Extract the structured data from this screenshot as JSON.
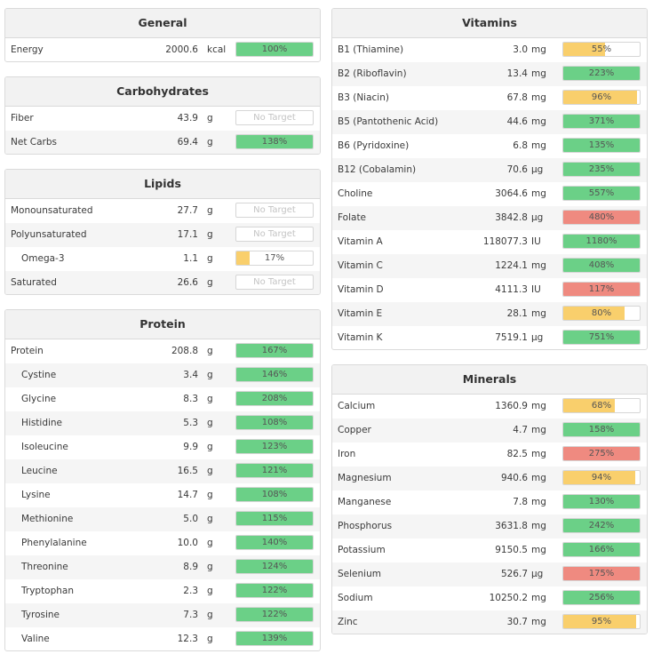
{
  "colors": {
    "over": "#6bd087",
    "under": "#f9cf6c",
    "excess": "#ef8a80"
  },
  "general": {
    "title": "General",
    "rows": [
      {
        "name": "Energy",
        "amount": "2000.6",
        "unit": "kcal",
        "pct": 100,
        "label": "100%",
        "status": "over"
      }
    ]
  },
  "carbohydrates": {
    "title": "Carbohydrates",
    "rows": [
      {
        "name": "Fiber",
        "amount": "43.9",
        "unit": "g",
        "pct": null,
        "label": "No Target",
        "status": "none"
      },
      {
        "name": "Net Carbs",
        "amount": "69.4",
        "unit": "g",
        "pct": 138,
        "label": "138%",
        "status": "over"
      }
    ]
  },
  "lipids": {
    "title": "Lipids",
    "rows": [
      {
        "name": "Monounsaturated",
        "amount": "27.7",
        "unit": "g",
        "pct": null,
        "label": "No Target",
        "status": "none"
      },
      {
        "name": "Polyunsaturated",
        "amount": "17.1",
        "unit": "g",
        "pct": null,
        "label": "No Target",
        "status": "none"
      },
      {
        "name": "Omega-3",
        "amount": "1.1",
        "unit": "g",
        "pct": 17,
        "label": "17%",
        "status": "under",
        "indent": true
      },
      {
        "name": "Saturated",
        "amount": "26.6",
        "unit": "g",
        "pct": null,
        "label": "No Target",
        "status": "none"
      }
    ]
  },
  "protein": {
    "title": "Protein",
    "rows": [
      {
        "name": "Protein",
        "amount": "208.8",
        "unit": "g",
        "pct": 167,
        "label": "167%",
        "status": "over"
      },
      {
        "name": "Cystine",
        "amount": "3.4",
        "unit": "g",
        "pct": 146,
        "label": "146%",
        "status": "over",
        "indent": true
      },
      {
        "name": "Glycine",
        "amount": "8.3",
        "unit": "g",
        "pct": 208,
        "label": "208%",
        "status": "over",
        "indent": true
      },
      {
        "name": "Histidine",
        "amount": "5.3",
        "unit": "g",
        "pct": 108,
        "label": "108%",
        "status": "over",
        "indent": true
      },
      {
        "name": "Isoleucine",
        "amount": "9.9",
        "unit": "g",
        "pct": 123,
        "label": "123%",
        "status": "over",
        "indent": true
      },
      {
        "name": "Leucine",
        "amount": "16.5",
        "unit": "g",
        "pct": 121,
        "label": "121%",
        "status": "over",
        "indent": true
      },
      {
        "name": "Lysine",
        "amount": "14.7",
        "unit": "g",
        "pct": 108,
        "label": "108%",
        "status": "over",
        "indent": true
      },
      {
        "name": "Methionine",
        "amount": "5.0",
        "unit": "g",
        "pct": 115,
        "label": "115%",
        "status": "over",
        "indent": true
      },
      {
        "name": "Phenylalanine",
        "amount": "10.0",
        "unit": "g",
        "pct": 140,
        "label": "140%",
        "status": "over",
        "indent": true
      },
      {
        "name": "Threonine",
        "amount": "8.9",
        "unit": "g",
        "pct": 124,
        "label": "124%",
        "status": "over",
        "indent": true
      },
      {
        "name": "Tryptophan",
        "amount": "2.3",
        "unit": "g",
        "pct": 122,
        "label": "122%",
        "status": "over",
        "indent": true
      },
      {
        "name": "Tyrosine",
        "amount": "7.3",
        "unit": "g",
        "pct": 122,
        "label": "122%",
        "status": "over",
        "indent": true
      },
      {
        "name": "Valine",
        "amount": "12.3",
        "unit": "g",
        "pct": 139,
        "label": "139%",
        "status": "over",
        "indent": true
      }
    ]
  },
  "vitamins": {
    "title": "Vitamins",
    "rows": [
      {
        "name": "B1 (Thiamine)",
        "amount": "3.0",
        "unit": "mg",
        "pct": 55,
        "label": "55%",
        "status": "under"
      },
      {
        "name": "B2 (Riboflavin)",
        "amount": "13.4",
        "unit": "mg",
        "pct": 223,
        "label": "223%",
        "status": "over"
      },
      {
        "name": "B3 (Niacin)",
        "amount": "67.8",
        "unit": "mg",
        "pct": 96,
        "label": "96%",
        "status": "under"
      },
      {
        "name": "B5 (Pantothenic Acid)",
        "amount": "44.6",
        "unit": "mg",
        "pct": 371,
        "label": "371%",
        "status": "over"
      },
      {
        "name": "B6 (Pyridoxine)",
        "amount": "6.8",
        "unit": "mg",
        "pct": 135,
        "label": "135%",
        "status": "over"
      },
      {
        "name": "B12 (Cobalamin)",
        "amount": "70.6",
        "unit": "µg",
        "pct": 235,
        "label": "235%",
        "status": "over"
      },
      {
        "name": "Choline",
        "amount": "3064.6",
        "unit": "mg",
        "pct": 557,
        "label": "557%",
        "status": "over"
      },
      {
        "name": "Folate",
        "amount": "3842.8",
        "unit": "µg",
        "pct": 480,
        "label": "480%",
        "status": "excess"
      },
      {
        "name": "Vitamin A",
        "amount": "118077.3",
        "unit": "IU",
        "pct": 1180,
        "label": "1180%",
        "status": "over"
      },
      {
        "name": "Vitamin C",
        "amount": "1224.1",
        "unit": "mg",
        "pct": 408,
        "label": "408%",
        "status": "over"
      },
      {
        "name": "Vitamin D",
        "amount": "4111.3",
        "unit": "IU",
        "pct": 117,
        "label": "117%",
        "status": "excess"
      },
      {
        "name": "Vitamin E",
        "amount": "28.1",
        "unit": "mg",
        "pct": 80,
        "label": "80%",
        "status": "under"
      },
      {
        "name": "Vitamin K",
        "amount": "7519.1",
        "unit": "µg",
        "pct": 751,
        "label": "751%",
        "status": "over"
      }
    ]
  },
  "minerals": {
    "title": "Minerals",
    "rows": [
      {
        "name": "Calcium",
        "amount": "1360.9",
        "unit": "mg",
        "pct": 68,
        "label": "68%",
        "status": "under"
      },
      {
        "name": "Copper",
        "amount": "4.7",
        "unit": "mg",
        "pct": 158,
        "label": "158%",
        "status": "over"
      },
      {
        "name": "Iron",
        "amount": "82.5",
        "unit": "mg",
        "pct": 275,
        "label": "275%",
        "status": "excess"
      },
      {
        "name": "Magnesium",
        "amount": "940.6",
        "unit": "mg",
        "pct": 94,
        "label": "94%",
        "status": "under"
      },
      {
        "name": "Manganese",
        "amount": "7.8",
        "unit": "mg",
        "pct": 130,
        "label": "130%",
        "status": "over"
      },
      {
        "name": "Phosphorus",
        "amount": "3631.8",
        "unit": "mg",
        "pct": 242,
        "label": "242%",
        "status": "over"
      },
      {
        "name": "Potassium",
        "amount": "9150.5",
        "unit": "mg",
        "pct": 166,
        "label": "166%",
        "status": "over"
      },
      {
        "name": "Selenium",
        "amount": "526.7",
        "unit": "µg",
        "pct": 175,
        "label": "175%",
        "status": "excess"
      },
      {
        "name": "Sodium",
        "amount": "10250.2",
        "unit": "mg",
        "pct": 256,
        "label": "256%",
        "status": "over"
      },
      {
        "name": "Zinc",
        "amount": "30.7",
        "unit": "mg",
        "pct": 95,
        "label": "95%",
        "status": "under"
      }
    ]
  }
}
